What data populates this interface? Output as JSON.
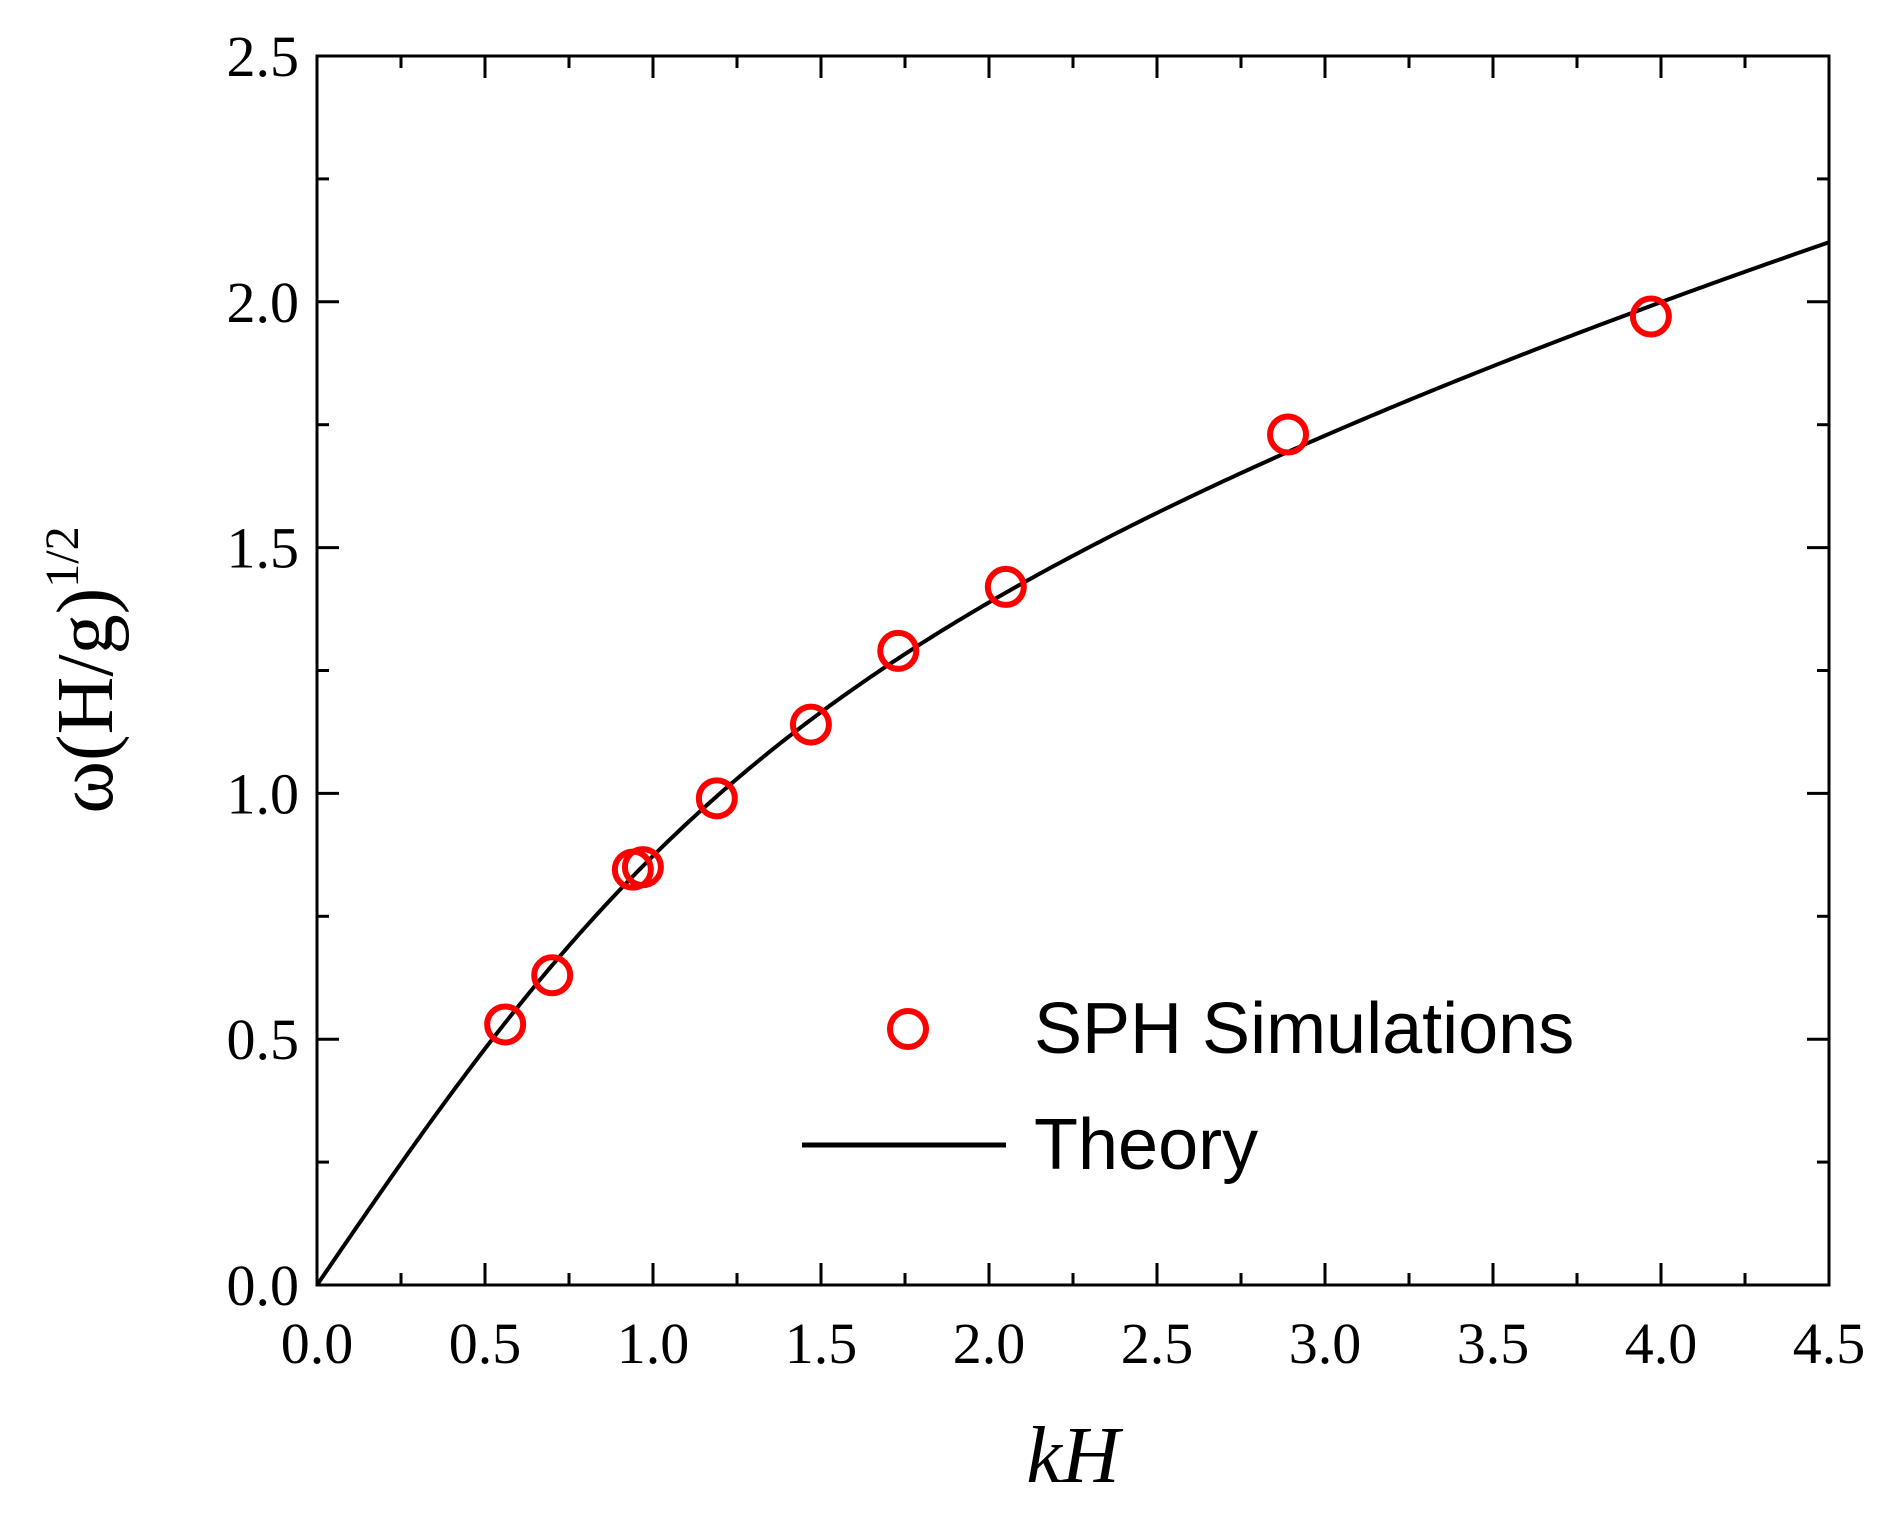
{
  "chart_data": {
    "type": "scatter",
    "title": "",
    "xlabel": "kH",
    "ylabel": "ω(H/g)",
    "ylabel_superscript": "1/2",
    "xlim": [
      0.0,
      4.5
    ],
    "ylim": [
      0.0,
      2.5
    ],
    "x_ticks": [
      "0.0",
      "0.5",
      "1.0",
      "1.5",
      "2.0",
      "2.5",
      "3.0",
      "3.5",
      "4.0",
      "4.5"
    ],
    "y_ticks": [
      "0.0",
      "0.5",
      "1.0",
      "1.5",
      "2.0",
      "2.5"
    ],
    "x_tick_values": [
      0.0,
      0.5,
      1.0,
      1.5,
      2.0,
      2.5,
      3.0,
      3.5,
      4.0,
      4.5
    ],
    "y_tick_values": [
      0.0,
      0.5,
      1.0,
      1.5,
      2.0,
      2.5
    ],
    "grid": false,
    "legend_position": "bottom-right",
    "series": [
      {
        "name": "SPH Simulations",
        "kind": "scatter",
        "marker": "open-circle",
        "color": "#ff0000",
        "x": [
          0.56,
          0.7,
          0.94,
          0.97,
          1.19,
          1.47,
          1.73,
          2.05,
          2.89,
          3.97
        ],
        "y": [
          0.53,
          0.63,
          0.845,
          0.85,
          0.99,
          1.14,
          1.29,
          1.42,
          1.73,
          1.97
        ]
      },
      {
        "name": "Theory",
        "kind": "line",
        "color": "#000000",
        "formula": "sqrt(kH * tanh(kH))",
        "x_range": [
          0.0,
          4.5
        ]
      }
    ]
  }
}
